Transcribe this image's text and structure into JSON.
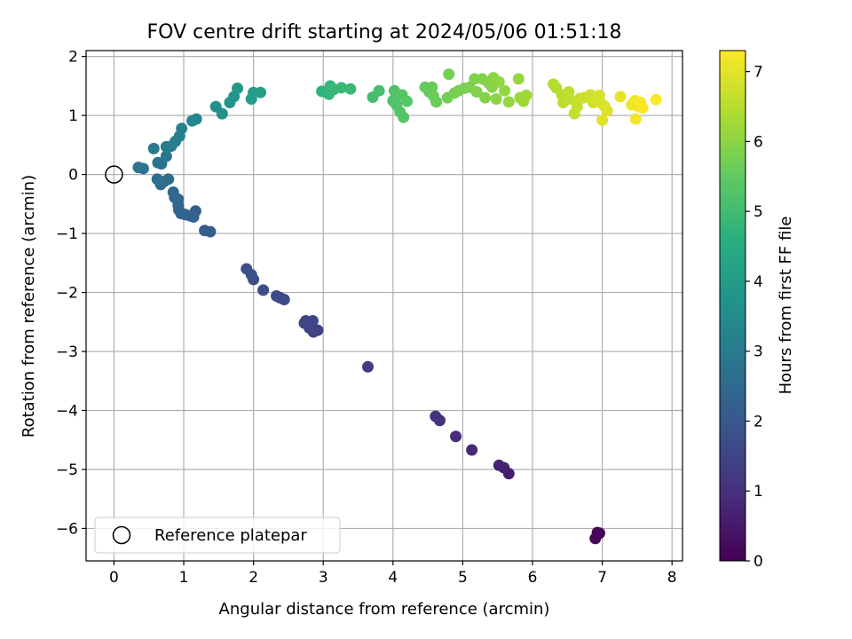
{
  "chart_data": {
    "type": "scatter",
    "title": "FOV centre drift starting at 2024/05/06 01:51:18",
    "xlabel": "Angular distance from reference (arcmin)",
    "ylabel": "Rotation from reference (arcmin)",
    "xlim": [
      -0.4,
      8.15
    ],
    "ylim": [
      -6.55,
      2.1
    ],
    "xticks": [
      0,
      1,
      2,
      3,
      4,
      5,
      6,
      7,
      8
    ],
    "yticks": [
      -6,
      -5,
      -4,
      -3,
      -2,
      -1,
      0,
      1,
      2
    ],
    "xtick_labels": [
      "0",
      "1",
      "2",
      "3",
      "4",
      "5",
      "6",
      "7",
      "8"
    ],
    "ytick_labels": [
      "−6",
      "−5",
      "−4",
      "−3",
      "−2",
      "−1",
      "0",
      "1",
      "2"
    ],
    "grid": true,
    "legend": {
      "location": "lower-left",
      "entries": [
        "Reference platepar"
      ]
    },
    "reference_point": {
      "x": 0,
      "y": 0,
      "label": "Reference platepar"
    },
    "colorbar": {
      "label": "Hours from first FF file",
      "colormap": "viridis",
      "range": [
        0,
        7.3
      ],
      "ticks": [
        0,
        1,
        2,
        3,
        4,
        5,
        6,
        7
      ],
      "tick_labels": [
        "0",
        "1",
        "2",
        "3",
        "4",
        "5",
        "6",
        "7"
      ]
    },
    "series": [
      {
        "points": [
          {
            "x": 6.93,
            "y": -6.07,
            "c": 0.05
          },
          {
            "x": 6.9,
            "y": -6.17,
            "c": 0.1
          },
          {
            "x": 6.96,
            "y": -6.08,
            "c": 0.12
          },
          {
            "x": 5.66,
            "y": -5.07,
            "c": 0.55
          },
          {
            "x": 5.59,
            "y": -4.97,
            "c": 0.65
          },
          {
            "x": 5.52,
            "y": -4.93,
            "c": 0.7
          },
          {
            "x": 5.13,
            "y": -4.67,
            "c": 0.85
          },
          {
            "x": 4.9,
            "y": -4.44,
            "c": 0.95
          },
          {
            "x": 4.67,
            "y": -4.17,
            "c": 1.0
          },
          {
            "x": 4.61,
            "y": -4.1,
            "c": 1.05
          },
          {
            "x": 3.64,
            "y": -3.26,
            "c": 1.25
          },
          {
            "x": 2.92,
            "y": -2.64,
            "c": 1.4
          },
          {
            "x": 2.86,
            "y": -2.67,
            "c": 1.42
          },
          {
            "x": 2.8,
            "y": -2.6,
            "c": 1.45
          },
          {
            "x": 2.73,
            "y": -2.52,
            "c": 1.48
          },
          {
            "x": 2.85,
            "y": -2.48,
            "c": 1.5
          },
          {
            "x": 2.75,
            "y": -2.48,
            "c": 1.52
          },
          {
            "x": 2.44,
            "y": -2.12,
            "c": 1.6
          },
          {
            "x": 2.38,
            "y": -2.09,
            "c": 1.62
          },
          {
            "x": 2.33,
            "y": -2.06,
            "c": 1.65
          },
          {
            "x": 2.14,
            "y": -1.96,
            "c": 1.7
          },
          {
            "x": 2.0,
            "y": -1.78,
            "c": 1.75
          },
          {
            "x": 1.97,
            "y": -1.7,
            "c": 1.78
          },
          {
            "x": 1.9,
            "y": -1.6,
            "c": 1.8
          },
          {
            "x": 1.38,
            "y": -0.97,
            "c": 2.1
          },
          {
            "x": 1.3,
            "y": -0.95,
            "c": 2.15
          },
          {
            "x": 1.17,
            "y": -0.62,
            "c": 2.25
          },
          {
            "x": 1.14,
            "y": -0.72,
            "c": 2.28
          },
          {
            "x": 1.09,
            "y": -0.7,
            "c": 2.3
          },
          {
            "x": 1.02,
            "y": -0.68,
            "c": 2.32
          },
          {
            "x": 0.96,
            "y": -0.66,
            "c": 2.35
          },
          {
            "x": 0.93,
            "y": -0.6,
            "c": 2.38
          },
          {
            "x": 0.92,
            "y": -0.52,
            "c": 2.4
          },
          {
            "x": 0.92,
            "y": -0.42,
            "c": 2.42
          },
          {
            "x": 0.87,
            "y": -0.39,
            "c": 2.45
          },
          {
            "x": 0.85,
            "y": -0.3,
            "c": 2.48
          },
          {
            "x": 0.78,
            "y": -0.08,
            "c": 2.55
          },
          {
            "x": 0.72,
            "y": -0.12,
            "c": 2.58
          },
          {
            "x": 0.67,
            "y": -0.17,
            "c": 2.6
          },
          {
            "x": 0.62,
            "y": -0.08,
            "c": 2.62
          },
          {
            "x": 0.68,
            "y": 0.18,
            "c": 2.7
          },
          {
            "x": 0.63,
            "y": 0.2,
            "c": 2.72
          },
          {
            "x": 0.42,
            "y": 0.1,
            "c": 2.8
          },
          {
            "x": 0.35,
            "y": 0.12,
            "c": 2.82
          },
          {
            "x": 0.57,
            "y": 0.44,
            "c": 2.9
          },
          {
            "x": 0.75,
            "y": 0.31,
            "c": 2.95
          },
          {
            "x": 0.75,
            "y": 0.47,
            "c": 3.0
          },
          {
            "x": 0.82,
            "y": 0.48,
            "c": 3.05
          },
          {
            "x": 0.88,
            "y": 0.56,
            "c": 3.1
          },
          {
            "x": 0.94,
            "y": 0.65,
            "c": 3.15
          },
          {
            "x": 0.97,
            "y": 0.78,
            "c": 3.2
          },
          {
            "x": 1.12,
            "y": 0.91,
            "c": 3.3
          },
          {
            "x": 1.18,
            "y": 0.94,
            "c": 3.35
          },
          {
            "x": 1.46,
            "y": 1.15,
            "c": 3.6
          },
          {
            "x": 1.55,
            "y": 1.03,
            "c": 3.65
          },
          {
            "x": 1.66,
            "y": 1.22,
            "c": 3.75
          },
          {
            "x": 1.72,
            "y": 1.32,
            "c": 3.8
          },
          {
            "x": 1.77,
            "y": 1.46,
            "c": 3.85
          },
          {
            "x": 1.97,
            "y": 1.28,
            "c": 3.95
          },
          {
            "x": 2.0,
            "y": 1.39,
            "c": 4.0
          },
          {
            "x": 2.1,
            "y": 1.39,
            "c": 4.05
          },
          {
            "x": 2.98,
            "y": 1.41,
            "c": 4.7
          },
          {
            "x": 3.08,
            "y": 1.36,
            "c": 4.75
          },
          {
            "x": 3.1,
            "y": 1.5,
            "c": 4.8
          },
          {
            "x": 3.15,
            "y": 1.44,
            "c": 4.82
          },
          {
            "x": 3.26,
            "y": 1.47,
            "c": 4.85
          },
          {
            "x": 3.39,
            "y": 1.45,
            "c": 4.9
          },
          {
            "x": 3.71,
            "y": 1.31,
            "c": 5.05
          },
          {
            "x": 3.8,
            "y": 1.42,
            "c": 5.1
          },
          {
            "x": 4.0,
            "y": 1.25,
            "c": 5.2
          },
          {
            "x": 4.02,
            "y": 1.42,
            "c": 5.22
          },
          {
            "x": 4.05,
            "y": 1.35,
            "c": 5.25
          },
          {
            "x": 4.05,
            "y": 1.18,
            "c": 5.27
          },
          {
            "x": 4.1,
            "y": 1.06,
            "c": 5.3
          },
          {
            "x": 4.15,
            "y": 0.97,
            "c": 5.32
          },
          {
            "x": 4.13,
            "y": 1.35,
            "c": 5.35
          },
          {
            "x": 4.2,
            "y": 1.24,
            "c": 5.38
          },
          {
            "x": 4.46,
            "y": 1.48,
            "c": 5.5
          },
          {
            "x": 4.52,
            "y": 1.4,
            "c": 5.55
          },
          {
            "x": 4.56,
            "y": 1.48,
            "c": 5.58
          },
          {
            "x": 4.58,
            "y": 1.33,
            "c": 5.6
          },
          {
            "x": 4.62,
            "y": 1.23,
            "c": 5.62
          },
          {
            "x": 4.8,
            "y": 1.7,
            "c": 5.7
          },
          {
            "x": 4.78,
            "y": 1.3,
            "c": 5.72
          },
          {
            "x": 4.88,
            "y": 1.38,
            "c": 5.75
          },
          {
            "x": 4.94,
            "y": 1.42,
            "c": 5.78
          },
          {
            "x": 5.02,
            "y": 1.46,
            "c": 5.8
          },
          {
            "x": 5.1,
            "y": 1.48,
            "c": 5.82
          },
          {
            "x": 5.17,
            "y": 1.62,
            "c": 5.85
          },
          {
            "x": 5.2,
            "y": 1.4,
            "c": 5.87
          },
          {
            "x": 5.28,
            "y": 1.62,
            "c": 5.9
          },
          {
            "x": 5.32,
            "y": 1.3,
            "c": 5.92
          },
          {
            "x": 5.37,
            "y": 1.55,
            "c": 5.95
          },
          {
            "x": 5.42,
            "y": 1.48,
            "c": 5.97
          },
          {
            "x": 5.44,
            "y": 1.64,
            "c": 6.0
          },
          {
            "x": 5.48,
            "y": 1.28,
            "c": 6.02
          },
          {
            "x": 5.52,
            "y": 1.57,
            "c": 6.05
          },
          {
            "x": 5.6,
            "y": 1.42,
            "c": 6.08
          },
          {
            "x": 5.66,
            "y": 1.23,
            "c": 6.1
          },
          {
            "x": 5.8,
            "y": 1.62,
            "c": 6.15
          },
          {
            "x": 5.82,
            "y": 1.3,
            "c": 6.18
          },
          {
            "x": 5.87,
            "y": 1.24,
            "c": 6.2
          },
          {
            "x": 5.91,
            "y": 1.34,
            "c": 6.22
          },
          {
            "x": 6.3,
            "y": 1.53,
            "c": 6.45
          },
          {
            "x": 6.34,
            "y": 1.47,
            "c": 6.48
          },
          {
            "x": 6.42,
            "y": 1.35,
            "c": 6.52
          },
          {
            "x": 6.44,
            "y": 1.22,
            "c": 6.55
          },
          {
            "x": 6.52,
            "y": 1.4,
            "c": 6.58
          },
          {
            "x": 6.53,
            "y": 1.28,
            "c": 6.6
          },
          {
            "x": 6.6,
            "y": 1.03,
            "c": 6.63
          },
          {
            "x": 6.64,
            "y": 1.15,
            "c": 6.66
          },
          {
            "x": 6.68,
            "y": 1.29,
            "c": 6.7
          },
          {
            "x": 6.74,
            "y": 1.3,
            "c": 6.72
          },
          {
            "x": 6.83,
            "y": 1.35,
            "c": 6.76
          },
          {
            "x": 6.87,
            "y": 1.22,
            "c": 6.8
          },
          {
            "x": 6.96,
            "y": 1.34,
            "c": 6.84
          },
          {
            "x": 6.97,
            "y": 1.22,
            "c": 6.86
          },
          {
            "x": 7.03,
            "y": 1.16,
            "c": 6.9
          },
          {
            "x": 7.07,
            "y": 1.08,
            "c": 6.94
          },
          {
            "x": 7.0,
            "y": 0.92,
            "c": 6.96
          },
          {
            "x": 7.26,
            "y": 1.32,
            "c": 7.05
          },
          {
            "x": 7.42,
            "y": 1.18,
            "c": 7.12
          },
          {
            "x": 7.47,
            "y": 1.25,
            "c": 7.15
          },
          {
            "x": 7.52,
            "y": 1.15,
            "c": 7.18
          },
          {
            "x": 7.48,
            "y": 0.94,
            "c": 7.2
          },
          {
            "x": 7.55,
            "y": 1.22,
            "c": 7.22
          },
          {
            "x": 7.58,
            "y": 1.13,
            "c": 7.25
          },
          {
            "x": 7.77,
            "y": 1.27,
            "c": 7.3
          }
        ]
      }
    ]
  }
}
